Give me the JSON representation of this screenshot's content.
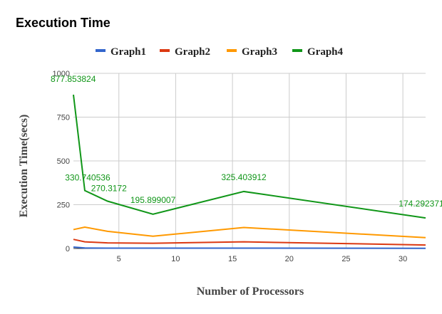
{
  "chart_data": {
    "type": "line",
    "title": "Execution Time",
    "xlabel": "Number of Processors",
    "ylabel": "Execution Time(secs)",
    "xlim": [
      1,
      32
    ],
    "ylim": [
      0,
      1000
    ],
    "xticks": [
      "5",
      "10",
      "15",
      "20",
      "25",
      "30"
    ],
    "yticks": [
      "0",
      "250",
      "500",
      "750",
      "1000"
    ],
    "legend_position": "top",
    "grid": true,
    "x": [
      1,
      2,
      4,
      8,
      16,
      32
    ],
    "series": [
      {
        "name": "Graph1",
        "color": "#3366cc",
        "values": [
          8,
          3,
          2,
          2,
          2,
          1
        ]
      },
      {
        "name": "Graph2",
        "color": "#dc3912",
        "values": [
          52,
          38,
          32,
          30,
          38,
          20
        ]
      },
      {
        "name": "Graph3",
        "color": "#ff9900",
        "values": [
          108,
          122,
          98,
          70,
          120,
          62
        ]
      },
      {
        "name": "Graph4",
        "color": "#109618",
        "values": [
          877.853824,
          330.740536,
          270.3172,
          195.899007,
          325.403912,
          174.292371
        ],
        "labels": [
          "877.853824",
          "330.740536",
          "270.3172",
          "195.899007",
          "325.403912",
          "174.292371"
        ]
      }
    ]
  }
}
